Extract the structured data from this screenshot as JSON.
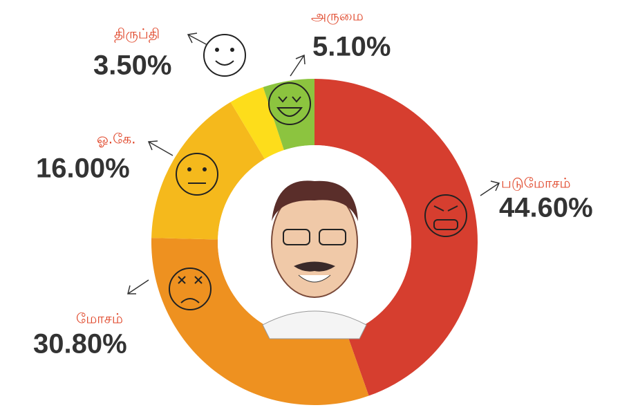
{
  "chart_data": {
    "type": "pie",
    "donut": true,
    "categories": [
      "படுமோசம்",
      "மோசம்",
      "ஓ.கே.",
      "திருப்தி",
      "அருமை"
    ],
    "values": [
      44.6,
      30.8,
      16.0,
      3.5,
      5.1
    ],
    "value_labels": [
      "44.60%",
      "30.80%",
      "16.00%",
      "3.50%",
      "5.10%"
    ],
    "colors": [
      "#d63e2f",
      "#ee9120",
      "#f5b91c",
      "#fddd1b",
      "#8cc43f"
    ]
  }
}
